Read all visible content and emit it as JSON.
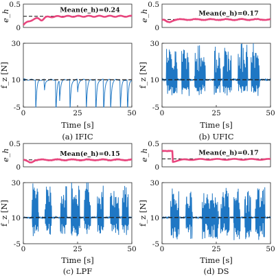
{
  "chart_data": [
    {
      "type": "line",
      "title": "(a) IFIC",
      "xlabel": "Time [s]",
      "xlim": [
        0,
        50
      ],
      "xticks": [
        "0",
        "25",
        "50"
      ],
      "top": {
        "ylabel": "e_h",
        "ylim": [
          0,
          0.5
        ],
        "yticks": [
          "0",
          "0.5"
        ],
        "mean_label": "Mean(e_h)=0.24",
        "mean_value": 0.24,
        "series": [
          {
            "color": "#e8457d",
            "profile": "rise",
            "start": 0.05,
            "final": 0.24
          }
        ]
      },
      "bottom": {
        "ylabel": "f_z [N]",
        "ylim": [
          -5,
          30
        ],
        "yticks": [
          "-5",
          "10",
          "30"
        ],
        "reference": 10,
        "series": [
          {
            "color": "#1f77c4",
            "profile": "ific"
          }
        ]
      }
    },
    {
      "type": "line",
      "title": "(b) UFIC",
      "xlabel": "Time [s]",
      "xlim": [
        0,
        50
      ],
      "xticks": [
        "0",
        "25",
        "50"
      ],
      "top": {
        "ylabel": "e_h",
        "ylim": [
          0,
          0.5
        ],
        "yticks": [
          "0",
          "0.5"
        ],
        "mean_label": "Mean(e_h)=0.17",
        "mean_value": 0.17,
        "series": [
          {
            "color": "#e8457d",
            "profile": "dip",
            "start": 0.17,
            "final": 0.17
          }
        ]
      },
      "bottom": {
        "ylabel": "f_z [N]",
        "ylim": [
          -5,
          30
        ],
        "yticks": [
          "-5",
          "10",
          "30"
        ],
        "reference": 10,
        "series": [
          {
            "color": "#1f77c4",
            "profile": "ufic"
          }
        ]
      }
    },
    {
      "type": "line",
      "title": "(c) LPF",
      "xlabel": "Time [s]",
      "xlim": [
        0,
        50
      ],
      "xticks": [
        "0",
        "25",
        "50"
      ],
      "top": {
        "ylabel": "e_h",
        "ylim": [
          0,
          0.5
        ],
        "yticks": [
          "0",
          "0.5"
        ],
        "mean_label": "Mean(e_h)=0.15",
        "mean_value": 0.15,
        "series": [
          {
            "color": "#e8457d",
            "profile": "dip",
            "start": 0.15,
            "final": 0.15
          }
        ]
      },
      "bottom": {
        "ylabel": "f_z [N]",
        "ylim": [
          -5,
          30
        ],
        "yticks": [
          "-5",
          "10",
          "30"
        ],
        "reference": 10,
        "series": [
          {
            "color": "#1f77c4",
            "profile": "lpf"
          }
        ]
      }
    },
    {
      "type": "line",
      "title": "(d) DS",
      "xlabel": "Time [s]",
      "xlim": [
        0,
        50
      ],
      "xticks": [
        "0",
        "25",
        "50"
      ],
      "top": {
        "ylabel": "e_h",
        "ylim": [
          0,
          0.5
        ],
        "yticks": [
          "0",
          "0.5"
        ],
        "mean_label": "Mean(e_h)=0.17",
        "mean_value": 0.17,
        "series": [
          {
            "color": "#e8457d",
            "profile": "drop",
            "start": 0.34,
            "final": 0.16
          }
        ]
      },
      "bottom": {
        "ylabel": "f_z [N]",
        "ylim": [
          -5,
          30
        ],
        "yticks": [
          "-5",
          "10",
          "30"
        ],
        "reference": 10,
        "series": [
          {
            "color": "#1f77c4",
            "profile": "ds"
          }
        ]
      }
    }
  ]
}
